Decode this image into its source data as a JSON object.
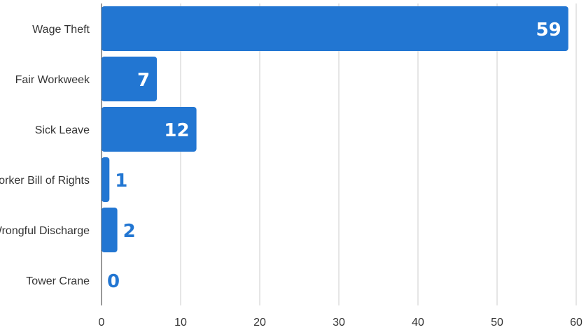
{
  "chart_data": {
    "type": "bar",
    "orientation": "horizontal",
    "categories": [
      "Wage Theft",
      "Fair Workweek",
      "Sick Leave",
      "Worker Bill of Rights",
      "Wrongful Discharge",
      "Tower Crane"
    ],
    "values": [
      59,
      7,
      12,
      1,
      2,
      0
    ],
    "title": "",
    "xlabel": "",
    "ylabel": "",
    "xlim": [
      0,
      60
    ],
    "xticks": [
      0,
      10,
      20,
      30,
      40,
      50,
      60
    ],
    "grid": true,
    "legend": "none",
    "bar_color": "#2276d2",
    "label_inside_color": "#ffffff",
    "label_outside_color": "#2276d2"
  }
}
